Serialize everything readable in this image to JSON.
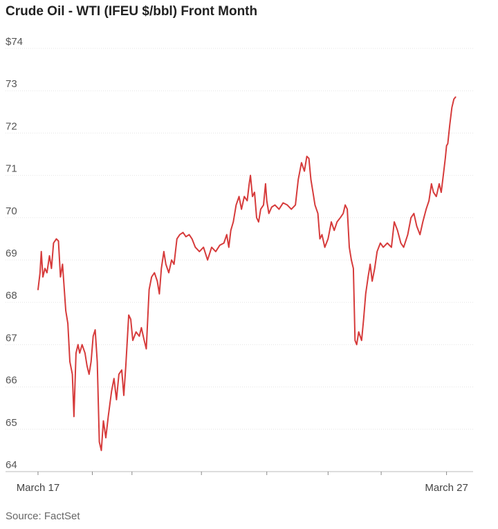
{
  "chart_data": {
    "type": "line",
    "title": "Crude Oil - WTI (IFEU $/bbl) Front Month",
    "source": "Source: FactSet",
    "ylim": [
      64,
      74
    ],
    "y_ticks": [
      64,
      65,
      66,
      67,
      68,
      69,
      70,
      71,
      72,
      73,
      74
    ],
    "y_tick_labels": [
      "64",
      "65",
      "66",
      "67",
      "68",
      "69",
      "70",
      "71",
      "72",
      "73",
      "$74"
    ],
    "x_tick_labels": [
      {
        "label": "March 17",
        "x": 0
      },
      {
        "label": "March 27",
        "x": 10
      }
    ],
    "x_minor_ticks": [
      0,
      1.33,
      2.3,
      4.0,
      5.6,
      7.1,
      8.4,
      10.0
    ],
    "xlim": [
      -0.05,
      10.65
    ],
    "grid": true,
    "line_color": "#d63b3b",
    "series": [
      {
        "values": [
          [
            0.0,
            68.3
          ],
          [
            0.05,
            68.7
          ],
          [
            0.08,
            69.2
          ],
          [
            0.12,
            68.6
          ],
          [
            0.17,
            68.8
          ],
          [
            0.22,
            68.7
          ],
          [
            0.28,
            69.1
          ],
          [
            0.33,
            68.8
          ],
          [
            0.38,
            69.4
          ],
          [
            0.45,
            69.5
          ],
          [
            0.5,
            69.45
          ],
          [
            0.55,
            68.6
          ],
          [
            0.6,
            68.9
          ],
          [
            0.68,
            67.8
          ],
          [
            0.73,
            67.5
          ],
          [
            0.78,
            66.6
          ],
          [
            0.84,
            66.3
          ],
          [
            0.88,
            65.3
          ],
          [
            0.93,
            66.8
          ],
          [
            0.98,
            67.0
          ],
          [
            1.02,
            66.8
          ],
          [
            1.08,
            67.0
          ],
          [
            1.15,
            66.8
          ],
          [
            1.2,
            66.5
          ],
          [
            1.25,
            66.3
          ],
          [
            1.3,
            66.6
          ],
          [
            1.35,
            67.2
          ],
          [
            1.4,
            67.35
          ],
          [
            1.45,
            66.6
          ],
          [
            1.5,
            64.7
          ],
          [
            1.55,
            64.5
          ],
          [
            1.6,
            65.2
          ],
          [
            1.66,
            64.8
          ],
          [
            1.72,
            65.3
          ],
          [
            1.8,
            65.9
          ],
          [
            1.86,
            66.2
          ],
          [
            1.92,
            65.7
          ],
          [
            1.98,
            66.3
          ],
          [
            2.05,
            66.4
          ],
          [
            2.1,
            65.8
          ],
          [
            2.15,
            66.5
          ],
          [
            2.22,
            67.7
          ],
          [
            2.27,
            67.6
          ],
          [
            2.32,
            67.1
          ],
          [
            2.4,
            67.3
          ],
          [
            2.48,
            67.2
          ],
          [
            2.53,
            67.4
          ],
          [
            2.6,
            67.1
          ],
          [
            2.65,
            66.9
          ],
          [
            2.72,
            68.3
          ],
          [
            2.78,
            68.6
          ],
          [
            2.85,
            68.7
          ],
          [
            2.92,
            68.5
          ],
          [
            2.97,
            68.2
          ],
          [
            3.02,
            68.8
          ],
          [
            3.08,
            69.2
          ],
          [
            3.13,
            68.9
          ],
          [
            3.2,
            68.7
          ],
          [
            3.27,
            69.0
          ],
          [
            3.33,
            68.9
          ],
          [
            3.4,
            69.5
          ],
          [
            3.47,
            69.6
          ],
          [
            3.55,
            69.65
          ],
          [
            3.62,
            69.55
          ],
          [
            3.7,
            69.6
          ],
          [
            3.77,
            69.5
          ],
          [
            3.85,
            69.3
          ],
          [
            3.95,
            69.2
          ],
          [
            4.05,
            69.3
          ],
          [
            4.15,
            69.0
          ],
          [
            4.25,
            69.3
          ],
          [
            4.35,
            69.2
          ],
          [
            4.45,
            69.35
          ],
          [
            4.55,
            69.4
          ],
          [
            4.62,
            69.6
          ],
          [
            4.67,
            69.3
          ],
          [
            4.72,
            69.7
          ],
          [
            4.78,
            69.9
          ],
          [
            4.85,
            70.3
          ],
          [
            4.92,
            70.5
          ],
          [
            4.98,
            70.2
          ],
          [
            5.05,
            70.5
          ],
          [
            5.12,
            70.4
          ],
          [
            5.17,
            70.8
          ],
          [
            5.2,
            71.0
          ],
          [
            5.25,
            70.5
          ],
          [
            5.3,
            70.6
          ],
          [
            5.35,
            70.0
          ],
          [
            5.4,
            69.9
          ],
          [
            5.45,
            70.2
          ],
          [
            5.52,
            70.3
          ],
          [
            5.57,
            70.8
          ],
          [
            5.6,
            70.4
          ],
          [
            5.65,
            70.1
          ],
          [
            5.72,
            70.25
          ],
          [
            5.8,
            70.3
          ],
          [
            5.9,
            70.2
          ],
          [
            6.0,
            70.35
          ],
          [
            6.1,
            70.3
          ],
          [
            6.2,
            70.2
          ],
          [
            6.3,
            70.3
          ],
          [
            6.37,
            70.9
          ],
          [
            6.45,
            71.3
          ],
          [
            6.52,
            71.1
          ],
          [
            6.58,
            71.45
          ],
          [
            6.63,
            71.4
          ],
          [
            6.68,
            70.9
          ],
          [
            6.73,
            70.6
          ],
          [
            6.78,
            70.3
          ],
          [
            6.85,
            70.1
          ],
          [
            6.9,
            69.5
          ],
          [
            6.95,
            69.6
          ],
          [
            7.02,
            69.3
          ],
          [
            7.1,
            69.5
          ],
          [
            7.18,
            69.9
          ],
          [
            7.25,
            69.7
          ],
          [
            7.32,
            69.9
          ],
          [
            7.4,
            70.0
          ],
          [
            7.47,
            70.1
          ],
          [
            7.52,
            70.3
          ],
          [
            7.57,
            70.2
          ],
          [
            7.62,
            69.3
          ],
          [
            7.67,
            69.0
          ],
          [
            7.72,
            68.8
          ],
          [
            7.76,
            67.1
          ],
          [
            7.8,
            67.0
          ],
          [
            7.85,
            67.3
          ],
          [
            7.92,
            67.1
          ],
          [
            7.97,
            67.6
          ],
          [
            8.02,
            68.2
          ],
          [
            8.08,
            68.6
          ],
          [
            8.13,
            68.9
          ],
          [
            8.18,
            68.5
          ],
          [
            8.24,
            68.8
          ],
          [
            8.3,
            69.2
          ],
          [
            8.38,
            69.4
          ],
          [
            8.45,
            69.3
          ],
          [
            8.55,
            69.4
          ],
          [
            8.65,
            69.3
          ],
          [
            8.72,
            69.9
          ],
          [
            8.8,
            69.7
          ],
          [
            8.88,
            69.4
          ],
          [
            8.95,
            69.3
          ],
          [
            9.05,
            69.6
          ],
          [
            9.13,
            70.0
          ],
          [
            9.2,
            70.1
          ],
          [
            9.27,
            69.8
          ],
          [
            9.35,
            69.6
          ],
          [
            9.42,
            69.9
          ],
          [
            9.5,
            70.2
          ],
          [
            9.57,
            70.4
          ],
          [
            9.63,
            70.8
          ],
          [
            9.68,
            70.6
          ],
          [
            9.75,
            70.5
          ],
          [
            9.82,
            70.8
          ],
          [
            9.87,
            70.6
          ],
          [
            9.92,
            71.0
          ],
          [
            9.97,
            71.4
          ],
          [
            10.0,
            71.7
          ],
          [
            10.03,
            71.75
          ],
          [
            10.08,
            72.2
          ],
          [
            10.13,
            72.6
          ],
          [
            10.18,
            72.8
          ],
          [
            10.22,
            72.85
          ]
        ]
      }
    ]
  }
}
